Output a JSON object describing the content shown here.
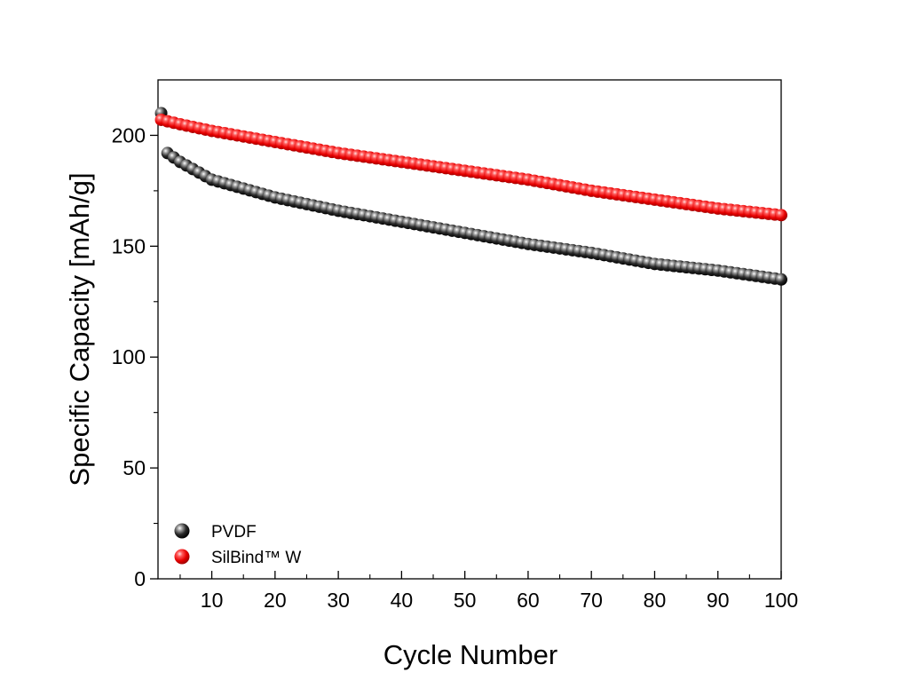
{
  "chart_data": {
    "type": "scatter",
    "title": "",
    "xlabel": "Cycle Number",
    "ylabel": "Specific Capacity [mAh/g]",
    "xlim": [
      1.5,
      100
    ],
    "ylim": [
      0,
      225
    ],
    "x_ticks_major": [
      10,
      20,
      30,
      40,
      50,
      60,
      70,
      80,
      90,
      100
    ],
    "y_ticks_major": [
      0,
      50,
      100,
      150,
      200
    ],
    "x_tick_labels": [
      "10",
      "20",
      "30",
      "40",
      "50",
      "60",
      "70",
      "80",
      "90",
      "100"
    ],
    "y_tick_labels": [
      "0",
      "50",
      "100",
      "150",
      "200"
    ],
    "grid": false,
    "legend_position": "bottom-left",
    "series": [
      {
        "name": "PVDF",
        "color": "#1a1a1a",
        "marker": "sphere",
        "x_range": [
          2,
          100
        ],
        "first_point": [
          2,
          210
        ],
        "anchor_points": [
          [
            3,
            192
          ],
          [
            5,
            188
          ],
          [
            10,
            180
          ],
          [
            15,
            176
          ],
          [
            20,
            172
          ],
          [
            30,
            166
          ],
          [
            40,
            161
          ],
          [
            50,
            156
          ],
          [
            60,
            151
          ],
          [
            70,
            147
          ],
          [
            80,
            142
          ],
          [
            90,
            139
          ],
          [
            100,
            135
          ]
        ]
      },
      {
        "name": "SilBind™ W",
        "color": "#ee1111",
        "marker": "sphere",
        "x_range": [
          2,
          100
        ],
        "anchor_points": [
          [
            2,
            207
          ],
          [
            5,
            205
          ],
          [
            10,
            202
          ],
          [
            20,
            197
          ],
          [
            30,
            192
          ],
          [
            40,
            188
          ],
          [
            50,
            184
          ],
          [
            60,
            180
          ],
          [
            70,
            175
          ],
          [
            80,
            171
          ],
          [
            90,
            167
          ],
          [
            100,
            164
          ]
        ]
      }
    ]
  }
}
